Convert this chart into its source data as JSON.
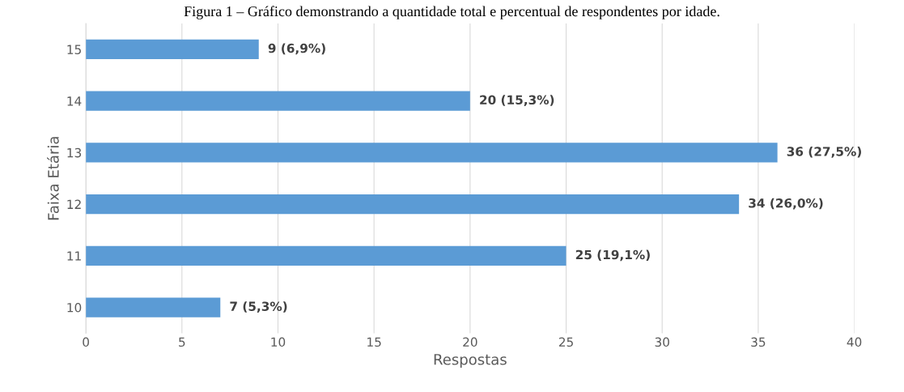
{
  "chart_data": {
    "type": "bar",
    "orientation": "horizontal",
    "title": "Figura 1 – Gráfico demonstrando a quantidade total e percentual de respondentes por idade.",
    "xlabel": "Respostas",
    "ylabel": "Faixa Etária",
    "categories": [
      "15",
      "14",
      "13",
      "12",
      "11",
      "10"
    ],
    "values": [
      9,
      20,
      36,
      34,
      25,
      7
    ],
    "color": "#5b9bd5",
    "value_labels": [
      "9 (6,9%)",
      "20 (15,3%)",
      "36 (27,5%)",
      "34 (26,0%)",
      "25 (19,1%)",
      "7 (5,3%)"
    ],
    "xlim": [
      0,
      40
    ],
    "xticks": [
      0,
      5,
      10,
      15,
      20,
      25,
      30,
      35,
      40
    ],
    "grid": "x",
    "legend": false
  }
}
